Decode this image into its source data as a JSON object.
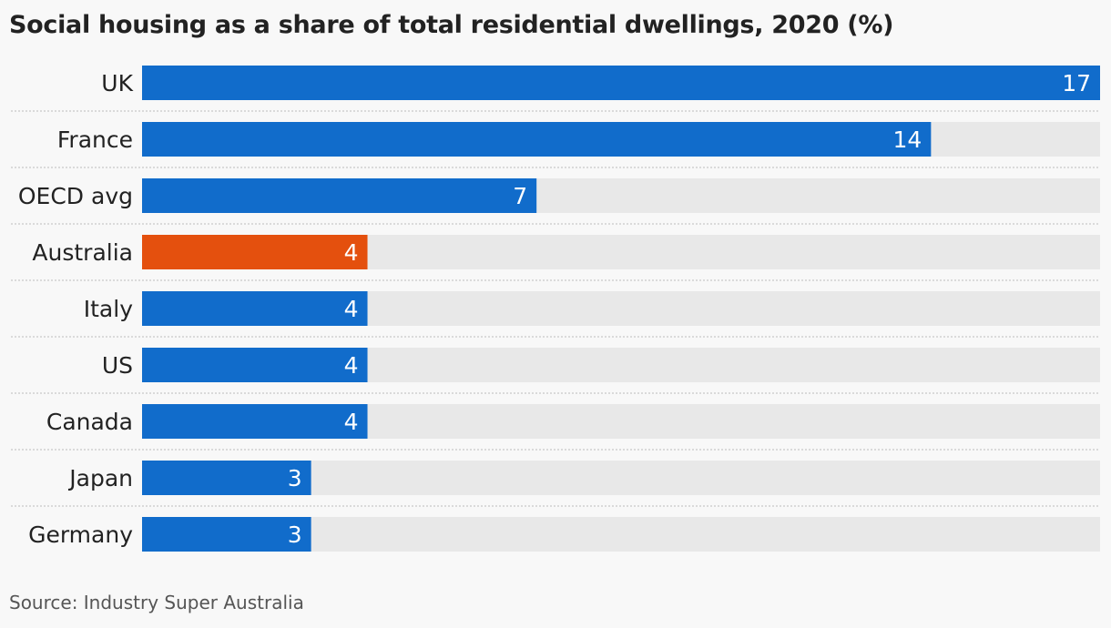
{
  "chart_data": {
    "type": "bar",
    "orientation": "horizontal",
    "title": "Social housing as a share of total residential dwellings, 2020 (%)",
    "source": "Source: Industry Super Australia",
    "categories": [
      "UK",
      "France",
      "OECD avg",
      "Australia",
      "Italy",
      "US",
      "Canada",
      "Japan",
      "Germany"
    ],
    "values": [
      17,
      14,
      7,
      4,
      4,
      4,
      4,
      3,
      3
    ],
    "xlim": [
      0,
      17
    ],
    "highlight": "Australia",
    "colors": {
      "bar": "#116ccb",
      "highlight": "#e4500e",
      "track": "#e8e8e8",
      "value_label": "#ffffff",
      "category_label": "#222222",
      "separator": "#bbbbbb"
    }
  }
}
